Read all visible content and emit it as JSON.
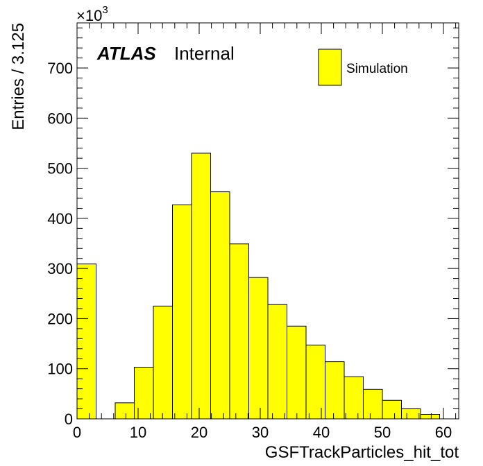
{
  "chart_data": {
    "type": "bar",
    "title": "",
    "xlabel": "GSFTrackParticles_hit_tot",
    "ylabel": "Entries / 3.125",
    "y_multiplier_label": "×10",
    "y_multiplier_exponent": "3",
    "xlim": [
      0,
      62.5
    ],
    "ylim": [
      0,
      790
    ],
    "bin_width": 3.125,
    "x_ticks": [
      0,
      10,
      20,
      30,
      40,
      50,
      60
    ],
    "x_tick_labels": [
      "0",
      "10",
      "20",
      "30",
      "40",
      "50",
      "60"
    ],
    "y_ticks": [
      0,
      100,
      200,
      300,
      400,
      500,
      600,
      700
    ],
    "y_tick_labels": [
      "0",
      "100",
      "200",
      "300",
      "400",
      "500",
      "600",
      "700"
    ],
    "bin_edges": [
      0,
      3.125,
      6.25,
      9.375,
      12.5,
      15.625,
      18.75,
      21.875,
      25,
      28.125,
      31.25,
      34.375,
      37.5,
      40.625,
      43.75,
      46.875,
      50,
      53.125,
      56.25,
      59.375
    ],
    "values": [
      309,
      0,
      32,
      103,
      225,
      427,
      530,
      453,
      349,
      282,
      228,
      185,
      147,
      114,
      84,
      59,
      37,
      20,
      9
    ],
    "fill_color": "#ffff00",
    "edge_color": "#000000",
    "grid": false,
    "legend_position": "top-right",
    "legend": [
      {
        "name": "Simulation",
        "color": "#ffff00"
      }
    ],
    "annotations": {
      "atlas": "ATLAS",
      "status": "Internal"
    }
  }
}
